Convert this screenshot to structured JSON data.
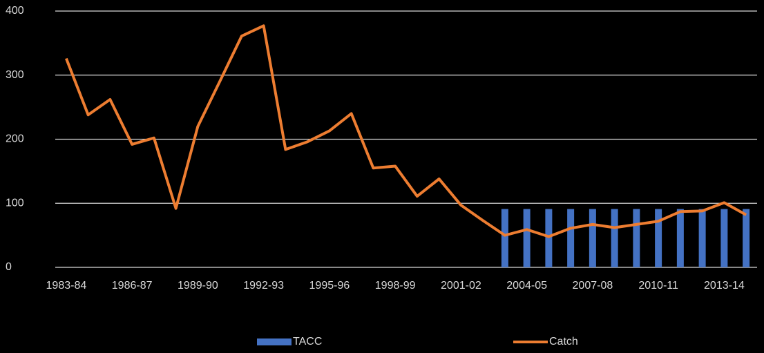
{
  "chart_data": {
    "type": "bar-line",
    "categories": [
      "1983-84",
      null,
      null,
      "1986-87",
      null,
      null,
      "1989-90",
      null,
      null,
      "1992-93",
      null,
      null,
      "1995-96",
      null,
      null,
      "1998-99",
      null,
      null,
      "2001-02",
      null,
      null,
      "2004-05",
      null,
      null,
      "2007-08",
      null,
      null,
      "2010-11",
      null,
      null,
      "2013-14",
      null
    ],
    "series": [
      {
        "name": "TACC",
        "type": "bar",
        "color": "#4472c4",
        "values": [
          null,
          null,
          null,
          null,
          null,
          null,
          null,
          null,
          null,
          null,
          null,
          null,
          null,
          null,
          null,
          null,
          null,
          null,
          null,
          null,
          91,
          91,
          91,
          91,
          91,
          91,
          91,
          91,
          91,
          91,
          91,
          91
        ]
      },
      {
        "name": "Catch",
        "type": "line",
        "color": "#ed7d31",
        "values": [
          326,
          238,
          262,
          192,
          202,
          92,
          220,
          290,
          361,
          377,
          184,
          196,
          213,
          240,
          155,
          158,
          111,
          138,
          97,
          73,
          50,
          59,
          48,
          61,
          67,
          62,
          67,
          72,
          87,
          88,
          101,
          82
        ]
      }
    ],
    "ylim": [
      0,
      400
    ],
    "yticks": [
      0,
      100,
      200,
      300,
      400
    ],
    "grid": true,
    "legend": "bottom"
  }
}
